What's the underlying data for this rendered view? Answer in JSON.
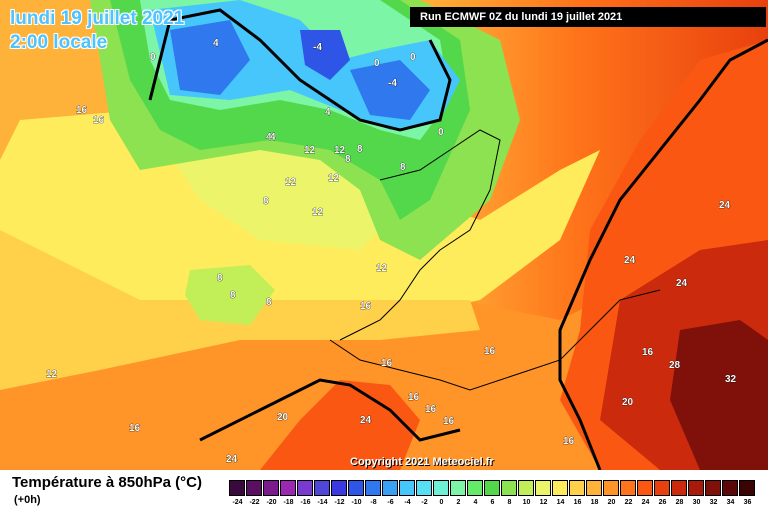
{
  "title_date": "lundi 19 juillet 2021",
  "title_time": "2:00 locale",
  "run_info": "Run ECMWF 0Z du lundi 19 juillet 2021",
  "copyright": "Copyright 2021 Meteociel.fr",
  "legend": {
    "title": "Température à 850hPa (°C)",
    "subtitle": "(+0h)",
    "ticks": [
      "-24",
      "-22",
      "-20",
      "-18",
      "-16",
      "-14",
      "-12",
      "-10",
      "-8",
      "-6",
      "-4",
      "-2",
      "0",
      "2",
      "4",
      "6",
      "8",
      "10",
      "12",
      "14",
      "16",
      "18",
      "20",
      "22",
      "24",
      "26",
      "28",
      "30",
      "32",
      "34",
      "36"
    ],
    "colors": [
      "#3a0a3e",
      "#5a0f63",
      "#7a1a8c",
      "#9a28b0",
      "#7a3ad0",
      "#5046d8",
      "#3a3ae0",
      "#2e55e6",
      "#2f78ee",
      "#3aa0f4",
      "#46c6fa",
      "#57e0f4",
      "#6ef0d6",
      "#7cf5a6",
      "#66ea6a",
      "#52d84a",
      "#8ce250",
      "#c2ee58",
      "#ecf46a",
      "#ffec5c",
      "#ffd04a",
      "#ffb23a",
      "#ff9428",
      "#ff741a",
      "#fa5812",
      "#e8400e",
      "#cc2a0c",
      "#a81a0a",
      "#80100a",
      "#5c0808",
      "#3a0404"
    ]
  },
  "labels": [
    {
      "text": "0"
    },
    {
      "text": "4"
    },
    {
      "text": "-4"
    },
    {
      "text": "0"
    },
    {
      "text": "-4"
    },
    {
      "text": "0"
    },
    {
      "text": "4"
    },
    {
      "text": "0"
    },
    {
      "text": "4"
    },
    {
      "text": "4"
    },
    {
      "text": "16"
    },
    {
      "text": "16"
    },
    {
      "text": "12"
    },
    {
      "text": "12"
    },
    {
      "text": "8"
    },
    {
      "text": "8"
    },
    {
      "text": "12"
    },
    {
      "text": "12"
    },
    {
      "text": "8"
    },
    {
      "text": "8"
    },
    {
      "text": "12"
    },
    {
      "text": "8"
    },
    {
      "text": "8"
    },
    {
      "text": "8"
    },
    {
      "text": "12"
    },
    {
      "text": "16"
    },
    {
      "text": "16"
    },
    {
      "text": "12"
    },
    {
      "text": "16"
    },
    {
      "text": "20"
    },
    {
      "text": "24"
    },
    {
      "text": "16"
    },
    {
      "text": "16"
    },
    {
      "text": "16"
    },
    {
      "text": "16"
    },
    {
      "text": "24"
    },
    {
      "text": "24"
    },
    {
      "text": "24"
    },
    {
      "text": "24"
    },
    {
      "text": "28"
    },
    {
      "text": "32"
    },
    {
      "text": "20"
    },
    {
      "text": "16"
    },
    {
      "text": "16"
    }
  ]
}
